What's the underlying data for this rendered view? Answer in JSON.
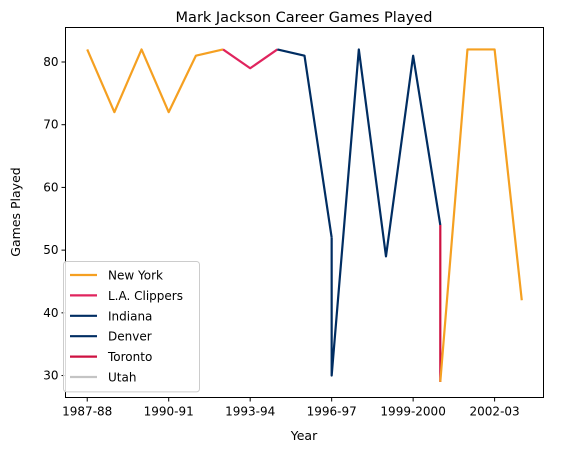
{
  "chart_data": {
    "type": "line",
    "title": "Mark Jackson  Career Games Played",
    "xlabel": "Year",
    "ylabel": "Games Played",
    "seasons": [
      "1987-88",
      "1988-89",
      "1989-90",
      "1990-91",
      "1991-92",
      "1992-93",
      "1993-94",
      "1994-95",
      "1995-96",
      "1996-97",
      "1997-98",
      "1998-99",
      "1999-2000",
      "2000-01",
      "2001-02",
      "2002-03",
      "2003-04"
    ],
    "xticks": [
      "1987-88",
      "1990-91",
      "1993-94",
      "1996-97",
      "1999-2000",
      "2002-03"
    ],
    "xlim": [
      "1987-88",
      "2003-04"
    ],
    "ylim": [
      26.5,
      85.5
    ],
    "yticks": [
      30,
      40,
      50,
      60,
      70,
      80
    ],
    "legend_position": "lower-left",
    "series": [
      {
        "name": "New York",
        "color": "#F5A021",
        "points": [
          [
            "1987-88",
            82
          ],
          [
            "1988-89",
            72
          ],
          [
            "1989-90",
            82
          ],
          [
            "1990-91",
            72
          ],
          [
            "1991-92",
            81
          ],
          [
            "1992-93",
            82
          ]
        ]
      },
      {
        "name": "L.A. Clippers",
        "color": "#E0245E",
        "points": [
          [
            "1992-93",
            82
          ],
          [
            "1993-94",
            79
          ],
          [
            "1994-95",
            82
          ]
        ]
      },
      {
        "name": "Indiana",
        "color": "#002D62",
        "points": [
          [
            "1994-95",
            82
          ],
          [
            "1995-96",
            81
          ],
          [
            "1996-97",
            52
          ]
        ]
      },
      {
        "name": "Denver",
        "color": "#002D62",
        "points": [
          [
            "1996-97",
            52
          ],
          [
            "1996-97",
            30
          ],
          [
            "1997-98",
            82
          ],
          [
            "1998-99",
            49
          ],
          [
            "1999-2000",
            81
          ],
          [
            "2000-01",
            54
          ]
        ]
      },
      {
        "name": "Toronto",
        "color": "#CE1141",
        "points": [
          [
            "2000-01",
            54
          ],
          [
            "2000-01",
            29
          ]
        ]
      },
      {
        "name": "Utah",
        "color": "#C4C4C4",
        "points": []
      },
      {
        "name": "New York",
        "color": "#F5A021",
        "in_legend": false,
        "points": [
          [
            "2000-01",
            29
          ],
          [
            "2001-02",
            82
          ],
          [
            "2002-03",
            82
          ],
          [
            "2003-04",
            42
          ]
        ]
      }
    ]
  }
}
